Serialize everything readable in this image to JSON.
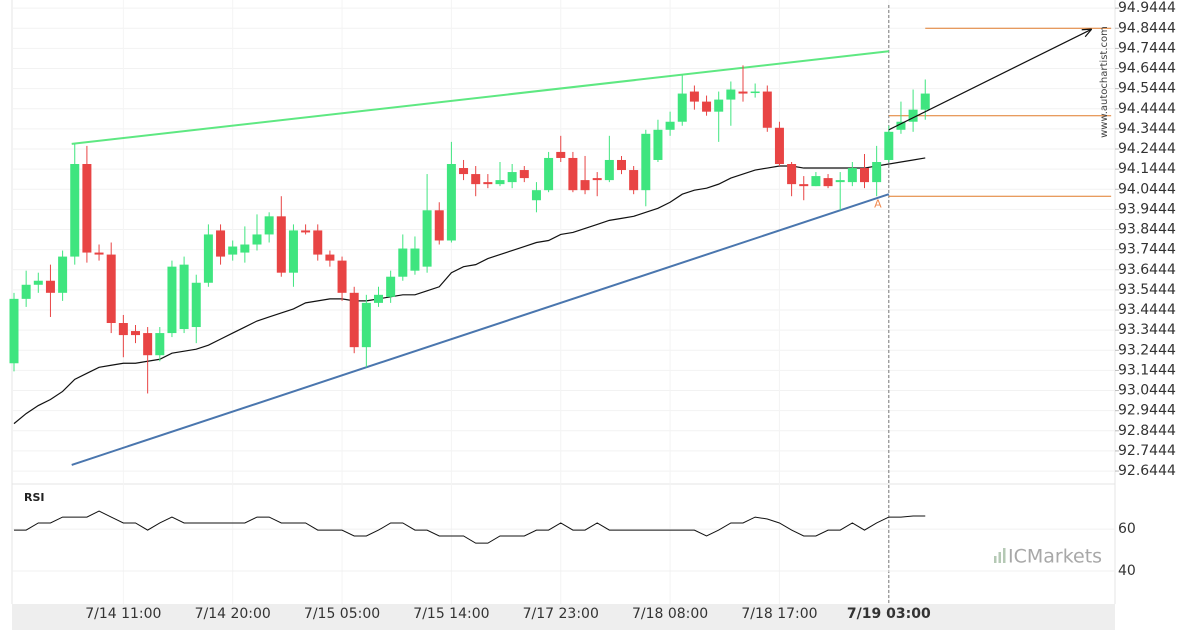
{
  "chart_data": [
    {
      "type": "candlestick",
      "categories": [
        null,
        null,
        null,
        null,
        null,
        null,
        null,
        null,
        null,
        "7/14 11:00",
        null,
        null,
        null,
        null,
        null,
        null,
        null,
        null,
        "7/14 20:00",
        null,
        null,
        null,
        null,
        null,
        null,
        null,
        null,
        "7/15 05:00",
        null,
        null,
        null,
        null,
        null,
        null,
        null,
        null,
        "7/15 14:00",
        null,
        null,
        null,
        null,
        null,
        null,
        null,
        null,
        "7/17 23:00",
        null,
        null,
        null,
        null,
        null,
        null,
        null,
        null,
        "7/18 08:00",
        null,
        null,
        null,
        null,
        null,
        null,
        null,
        null,
        "7/18 17:00",
        null,
        null,
        null,
        null,
        null,
        null,
        null,
        null,
        "7/19 03:00",
        null,
        null,
        null
      ],
      "open": [
        93.18,
        93.5,
        93.57,
        93.59,
        93.53,
        93.71,
        94.17,
        93.73,
        93.72,
        93.38,
        93.34,
        93.33,
        93.22,
        93.33,
        93.35,
        93.36,
        93.58,
        93.84,
        93.72,
        93.73,
        93.77,
        93.82,
        93.91,
        93.63,
        93.84,
        93.84,
        93.72,
        93.69,
        93.53,
        93.26,
        93.48,
        93.51,
        93.61,
        93.64,
        93.66,
        93.94,
        93.79,
        94.15,
        94.12,
        94.08,
        94.07,
        94.08,
        94.14,
        93.99,
        94.04,
        94.23,
        94.2,
        94.09,
        94.1,
        94.09,
        94.19,
        94.14,
        94.04,
        94.19,
        94.34,
        94.38,
        94.53,
        94.48,
        94.43,
        94.49,
        94.53,
        94.53,
        94.53,
        94.35,
        94.17,
        94.07,
        94.06,
        94.1,
        94.08,
        94.08,
        94.15,
        94.08,
        94.19,
        94.34,
        94.38,
        94.44
      ],
      "high": [
        93.53,
        93.64,
        93.63,
        93.67,
        93.74,
        94.27,
        94.26,
        93.77,
        93.78,
        93.42,
        93.37,
        93.36,
        93.36,
        93.69,
        93.71,
        93.62,
        93.87,
        93.87,
        93.79,
        93.86,
        93.92,
        93.93,
        94.01,
        93.87,
        93.87,
        93.87,
        93.74,
        93.71,
        93.56,
        93.52,
        93.56,
        93.64,
        93.82,
        93.81,
        94.12,
        93.98,
        94.28,
        94.19,
        94.16,
        94.12,
        94.18,
        94.17,
        94.16,
        94.08,
        94.23,
        94.31,
        94.23,
        94.21,
        94.13,
        94.31,
        94.21,
        94.16,
        94.34,
        94.39,
        94.43,
        94.61,
        94.56,
        94.51,
        94.53,
        94.58,
        94.66,
        94.57,
        94.56,
        94.38,
        94.18,
        94.11,
        94.13,
        94.12,
        94.13,
        94.18,
        94.22,
        94.26,
        94.36,
        94.48,
        94.54,
        94.59
      ],
      "low": [
        93.14,
        93.46,
        93.53,
        93.41,
        93.49,
        93.67,
        93.68,
        93.69,
        93.33,
        93.21,
        93.28,
        93.03,
        93.19,
        93.31,
        93.33,
        93.28,
        93.56,
        93.67,
        93.69,
        93.68,
        93.74,
        93.78,
        93.61,
        93.56,
        93.82,
        93.69,
        93.66,
        93.49,
        93.23,
        93.16,
        93.46,
        93.48,
        93.59,
        93.62,
        93.63,
        93.77,
        93.78,
        94.09,
        94.01,
        94.05,
        94.06,
        94.05,
        94.08,
        93.93,
        94.03,
        94.18,
        94.03,
        94.02,
        94.01,
        94.08,
        94.12,
        94.02,
        93.96,
        94.18,
        94.31,
        94.36,
        94.44,
        94.41,
        94.28,
        94.36,
        94.48,
        94.5,
        94.33,
        94.16,
        94.01,
        93.99,
        94.06,
        94.05,
        93.94,
        94.06,
        94.05,
        94.01,
        94.18,
        94.32,
        94.33,
        94.39
      ],
      "close": [
        93.5,
        93.57,
        93.59,
        93.53,
        93.71,
        94.17,
        93.73,
        93.72,
        93.38,
        93.32,
        93.32,
        93.22,
        93.33,
        93.66,
        93.67,
        93.58,
        93.82,
        93.71,
        93.76,
        93.77,
        93.82,
        93.91,
        93.63,
        93.84,
        93.83,
        93.72,
        93.69,
        93.53,
        93.26,
        93.48,
        93.52,
        93.61,
        93.75,
        93.75,
        93.94,
        93.79,
        94.17,
        94.12,
        94.07,
        94.07,
        94.09,
        94.13,
        94.1,
        94.04,
        94.2,
        94.2,
        94.04,
        94.04,
        94.09,
        94.19,
        94.14,
        94.04,
        94.32,
        94.34,
        94.38,
        94.52,
        94.48,
        94.43,
        94.49,
        94.54,
        94.52,
        94.53,
        94.35,
        94.17,
        94.07,
        94.06,
        94.11,
        94.06,
        94.09,
        94.15,
        94.08,
        94.18,
        94.33,
        94.38,
        94.44,
        94.52
      ],
      "up_color": "#3fe57f",
      "down_color": "#e84444",
      "ma": {
        "color": "#111111",
        "values": [
          92.88,
          92.93,
          92.97,
          93.0,
          93.04,
          93.1,
          93.13,
          93.16,
          93.17,
          93.18,
          93.18,
          93.19,
          93.2,
          93.23,
          93.24,
          93.25,
          93.27,
          93.3,
          93.33,
          93.36,
          93.39,
          93.41,
          93.43,
          93.45,
          93.48,
          93.49,
          93.5,
          93.5,
          93.49,
          93.49,
          93.5,
          93.51,
          93.52,
          93.52,
          93.54,
          93.56,
          93.63,
          93.66,
          93.67,
          93.7,
          93.72,
          93.74,
          93.76,
          93.78,
          93.79,
          93.82,
          93.83,
          93.85,
          93.87,
          93.89,
          93.9,
          93.91,
          93.93,
          93.95,
          93.98,
          94.02,
          94.04,
          94.05,
          94.07,
          94.1,
          94.12,
          94.14,
          94.15,
          94.16,
          94.16,
          94.15,
          94.15,
          94.15,
          94.15,
          94.15,
          94.15,
          94.16,
          94.17,
          94.18,
          94.19,
          94.2
        ]
      },
      "trendlines": [
        {
          "color": "#5ee882",
          "points": [
            [
              4.75,
              94.27
            ],
            [
              72,
              94.73
            ]
          ]
        },
        {
          "color": "#4a76ae",
          "points": [
            [
              4.75,
              92.675
            ],
            [
              72,
              94.02
            ]
          ]
        }
      ],
      "arrow": {
        "color": "#111111",
        "points": [
          [
            72,
            94.34
          ],
          [
            88.7,
            94.84
          ]
        ]
      },
      "levels": {
        "color": "#e07b2a",
        "end": 90.3,
        "items": [
          {
            "value": 94.8444,
            "from": 75
          },
          {
            "value": 94.41,
            "from": 72
          },
          {
            "value": 94.01,
            "from": 72
          }
        ]
      },
      "annotation": {
        "text": "A",
        "x": 71.1,
        "y": 93.97,
        "color": "#f08a50"
      },
      "vline_at": 72,
      "ylim": [
        92.6,
        94.96
      ],
      "yticks": [
        94.9444,
        94.8444,
        94.7444,
        94.6444,
        94.5444,
        94.4444,
        94.3444,
        94.2444,
        94.1444,
        94.0444,
        93.9444,
        93.8444,
        93.7444,
        93.6444,
        93.5444,
        93.4444,
        93.3444,
        93.2444,
        93.1444,
        93.0444,
        92.9444,
        92.8444,
        92.7444,
        92.6444
      ],
      "grid": true,
      "watermark": "www.autochartist.com",
      "logo": "ICMarkets"
    },
    {
      "type": "line",
      "title": "RSI",
      "color": "#111111",
      "values": [
        59.5,
        59.5,
        62.9,
        62.9,
        65.7,
        65.7,
        65.7,
        68.6,
        65.7,
        62.9,
        62.9,
        59.5,
        62.9,
        65.7,
        62.9,
        62.9,
        62.9,
        62.9,
        62.9,
        62.9,
        65.7,
        65.7,
        62.9,
        62.9,
        62.9,
        59.5,
        59.5,
        59.5,
        56.7,
        56.7,
        59.5,
        62.9,
        62.9,
        59.5,
        59.5,
        56.7,
        56.7,
        56.7,
        53.3,
        53.3,
        56.7,
        56.7,
        56.7,
        59.5,
        59.5,
        62.9,
        59.5,
        59.5,
        62.9,
        59.5,
        59.5,
        59.5,
        59.5,
        59.5,
        59.5,
        59.5,
        59.5,
        56.7,
        59.5,
        62.9,
        62.9,
        65.7,
        64.8,
        62.9,
        59.5,
        56.7,
        56.7,
        59.5,
        59.5,
        62.9,
        59.5,
        62.9,
        65.7,
        65.7,
        66.2,
        66.2
      ],
      "ylim": [
        26.2,
        81
      ],
      "yticks": [
        40,
        60
      ],
      "grid": true
    }
  ]
}
